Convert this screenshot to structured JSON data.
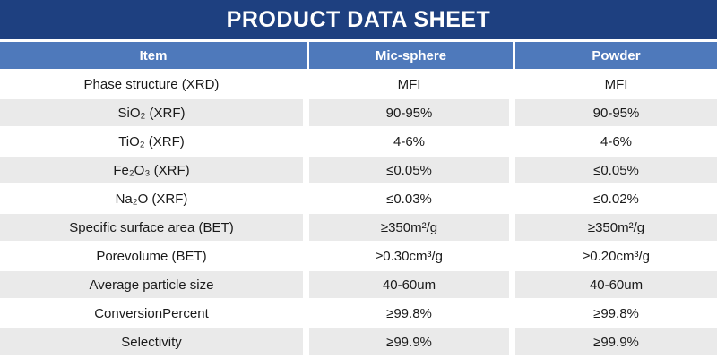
{
  "title": "PRODUCT DATA SHEET",
  "colors": {
    "title_bar_bg": "#1E4080",
    "title_text": "#FFFFFF",
    "header_bg": "#4E79BB",
    "header_text": "#FFFFFF",
    "band_gray": "#EAEAEA",
    "body_text": "#1A1A1A"
  },
  "table": {
    "columns": [
      "Item",
      "Mic-sphere",
      "Powder"
    ],
    "rows": [
      {
        "item": "Phase structure (XRD)",
        "mic_sphere": "MFI",
        "powder": "MFI"
      },
      {
        "item": "SiO₂ (XRF)",
        "mic_sphere": "90-95%",
        "powder": "90-95%"
      },
      {
        "item": "TiO₂ (XRF)",
        "mic_sphere": "4-6%",
        "powder": "4-6%"
      },
      {
        "item": "Fe₂O₃ (XRF)",
        "mic_sphere": "≤0.05%",
        "powder": "≤0.05%"
      },
      {
        "item": "Na₂O (XRF)",
        "mic_sphere": "≤0.03%",
        "powder": "≤0.02%"
      },
      {
        "item": "Specific surface area (BET)",
        "mic_sphere": "≥350m²/g",
        "powder": "≥350m²/g"
      },
      {
        "item": "Porevolume (BET)",
        "mic_sphere": "≥0.30cm³/g",
        "powder": "≥0.20cm³/g"
      },
      {
        "item": "Average particle size",
        "mic_sphere": "40-60um",
        "powder": "40-60um"
      },
      {
        "item": "ConversionPercent",
        "mic_sphere": "≥99.8%",
        "powder": "≥99.8%"
      },
      {
        "item": "Selectivity",
        "mic_sphere": "≥99.9%",
        "powder": "≥99.9%"
      }
    ]
  }
}
